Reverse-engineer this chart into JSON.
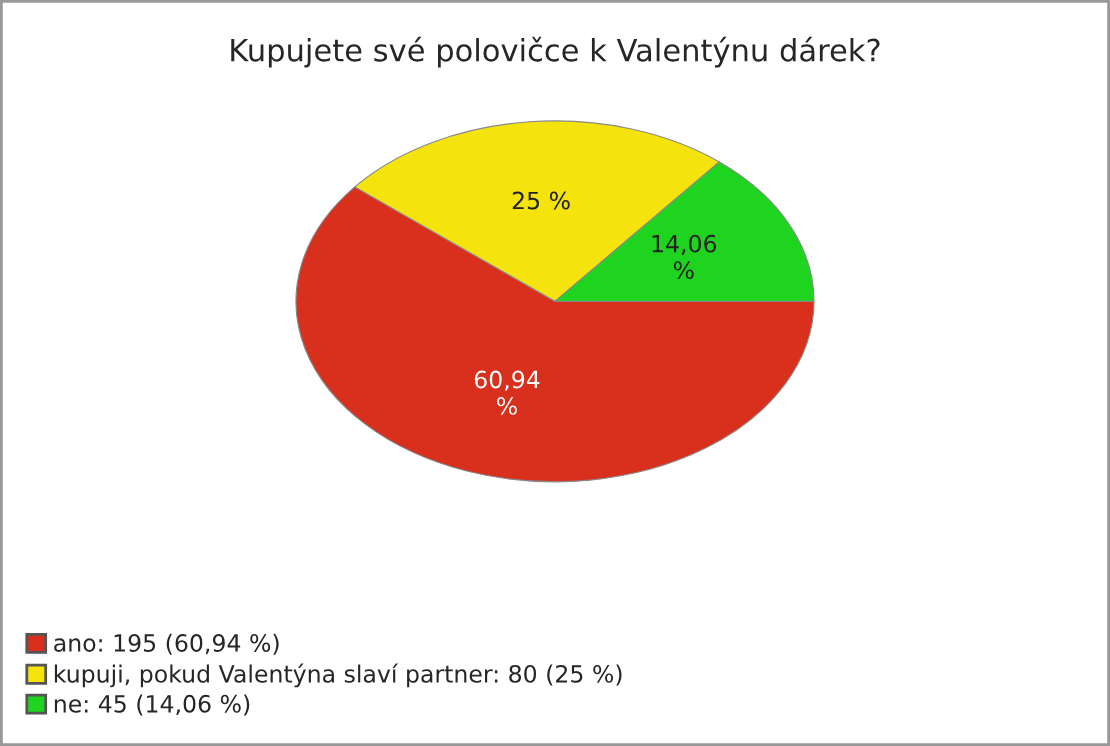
{
  "chart_data": {
    "type": "pie",
    "title": "Kupujete své polovičce k Valentýnu dárek?",
    "categories": [
      "ano: 195 (60,94 %)",
      "kupuji, pokud Valentýna slaví partner: 80 (25 %)",
      "ne: 45 (14,06 %)"
    ],
    "values": [
      60.94,
      25,
      14.06
    ],
    "value_labels": [
      "60,94\n%",
      "25 %",
      "14,06\n%"
    ],
    "colors": [
      "#d8301c",
      "#f5e30e",
      "#1fd41f"
    ],
    "legend": "bottom left"
  }
}
